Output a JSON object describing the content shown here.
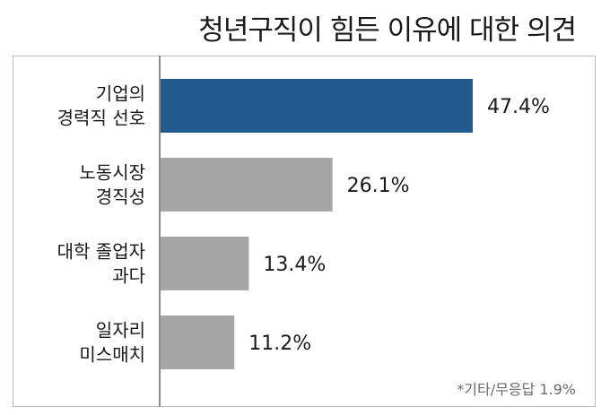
{
  "chart_data": {
    "type": "bar",
    "orientation": "horizontal",
    "title": "청년구직이 힘든 이유에 대한 의견",
    "categories": [
      [
        "기업의",
        "경력직 선호"
      ],
      [
        "노동시장",
        "경직성"
      ],
      [
        "대학 졸업자",
        "과다"
      ],
      [
        "일자리",
        "미스매치"
      ]
    ],
    "values": [
      47.4,
      26.1,
      13.4,
      11.2
    ],
    "value_labels": [
      "47.4%",
      "26.1%",
      "13.4%",
      "11.2%"
    ],
    "unit": "%",
    "xlim": [
      0,
      50
    ],
    "colors": [
      "#245b8e",
      "#a6a6a6",
      "#a6a6a6",
      "#a6a6a6"
    ],
    "note": "*기타/무응답 1.9%",
    "grid": false
  }
}
